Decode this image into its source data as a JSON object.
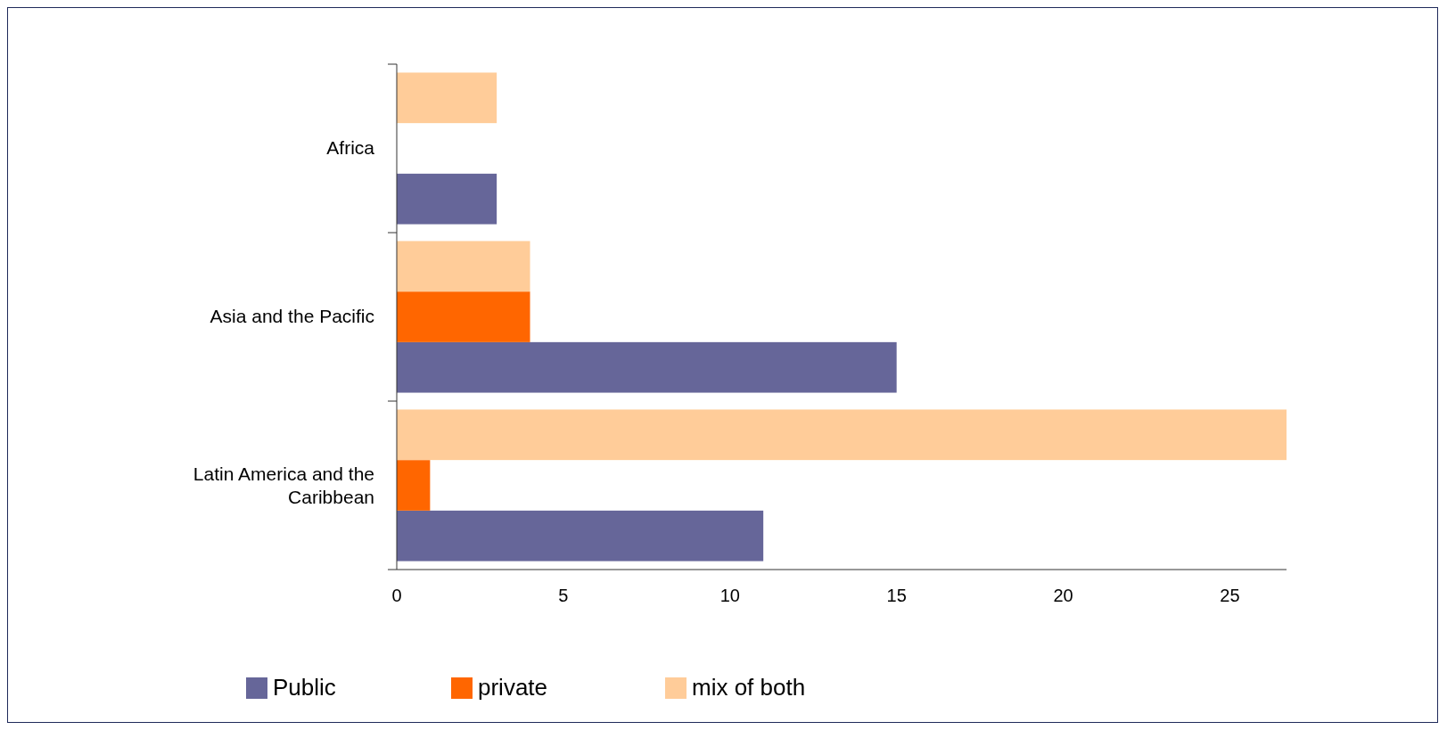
{
  "chart_data": {
    "type": "bar",
    "orientation": "horizontal",
    "categories": [
      "Africa",
      "Asia and the Pacific",
      "Latin America and the Caribbean"
    ],
    "series": [
      {
        "name": "Public",
        "color": "#666699",
        "values": [
          3,
          15,
          11
        ]
      },
      {
        "name": "private",
        "color": "#ff6600",
        "values": [
          0,
          4,
          1
        ]
      },
      {
        "name": "mix of both",
        "color": "#ffcc99",
        "values": [
          3,
          4,
          26.7
        ]
      }
    ],
    "xlim": [
      0,
      26.7
    ],
    "xticks": [
      0,
      5,
      10,
      15,
      20,
      25
    ],
    "legend": "bottom",
    "grid": false
  }
}
